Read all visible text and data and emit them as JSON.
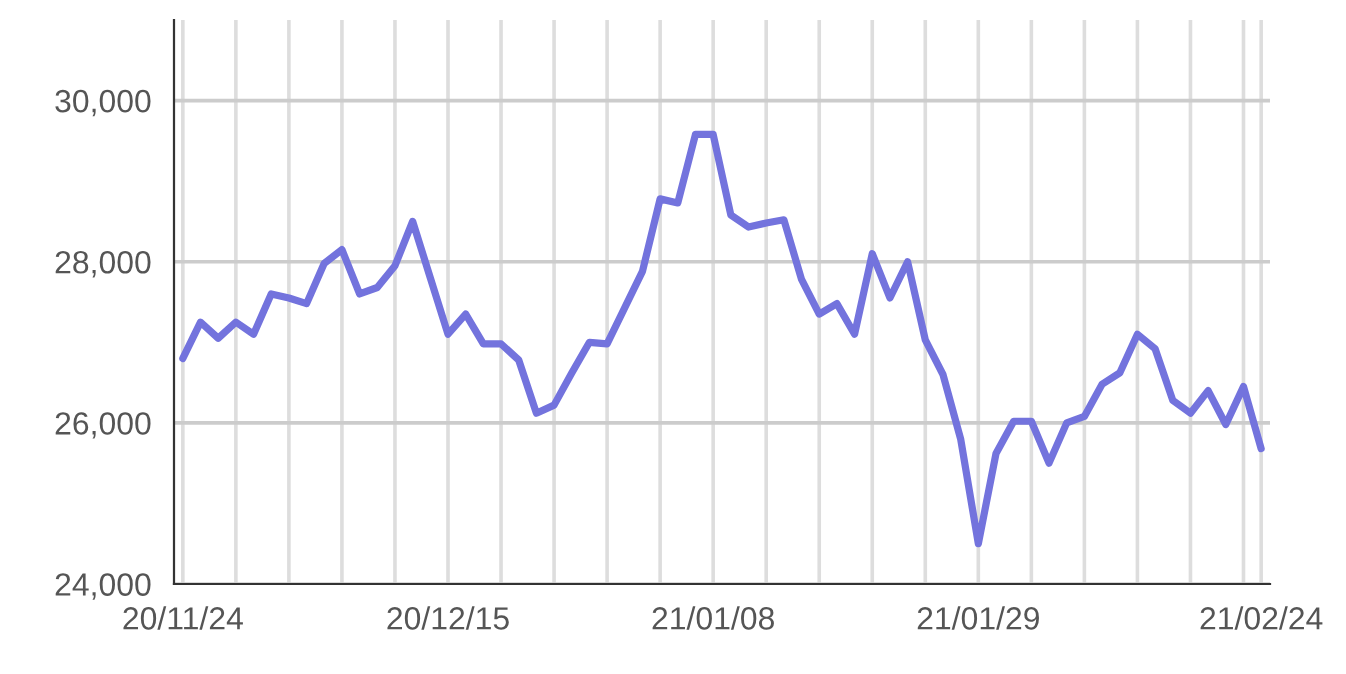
{
  "chart_data": {
    "type": "line",
    "categories": [
      "20/11/24",
      null,
      null,
      null,
      null,
      null,
      null,
      null,
      null,
      null,
      null,
      null,
      null,
      null,
      null,
      "20/12/15",
      null,
      null,
      null,
      null,
      null,
      null,
      null,
      null,
      null,
      null,
      null,
      null,
      null,
      null,
      "21/01/08",
      null,
      null,
      null,
      null,
      null,
      null,
      null,
      null,
      null,
      null,
      null,
      null,
      null,
      null,
      "21/01/29",
      null,
      null,
      null,
      null,
      null,
      null,
      null,
      null,
      null,
      null,
      null,
      null,
      null,
      null,
      null,
      "21/02/24"
    ],
    "series": [
      {
        "color": "#7373dd",
        "values": [
          26800,
          27250,
          27050,
          27250,
          27100,
          27600,
          27550,
          27480,
          27980,
          28150,
          27600,
          27680,
          27950,
          28500,
          27800,
          27100,
          27350,
          26980,
          26980,
          26780,
          26120,
          26220,
          26620,
          27000,
          26980,
          27430,
          27880,
          28780,
          28730,
          29580,
          29580,
          28580,
          28430,
          28480,
          28520,
          27780,
          27350,
          27480,
          27100,
          28100,
          27550,
          28000,
          27030,
          26600,
          25800,
          24500,
          25620,
          26020,
          26020,
          25500,
          26000,
          26080,
          26480,
          26620,
          27100,
          26920,
          26280,
          26120,
          26400,
          25980,
          26450,
          25680
        ]
      }
    ],
    "ylim": [
      24000,
      31000
    ],
    "yticks": [
      {
        "value": 24000,
        "label": "24,000"
      },
      {
        "value": 26000,
        "label": "26,000"
      },
      {
        "value": 28000,
        "label": "28,000"
      },
      {
        "value": 30000,
        "label": "30,000"
      }
    ],
    "grid": true,
    "marker": "none",
    "line_style": "solid"
  }
}
